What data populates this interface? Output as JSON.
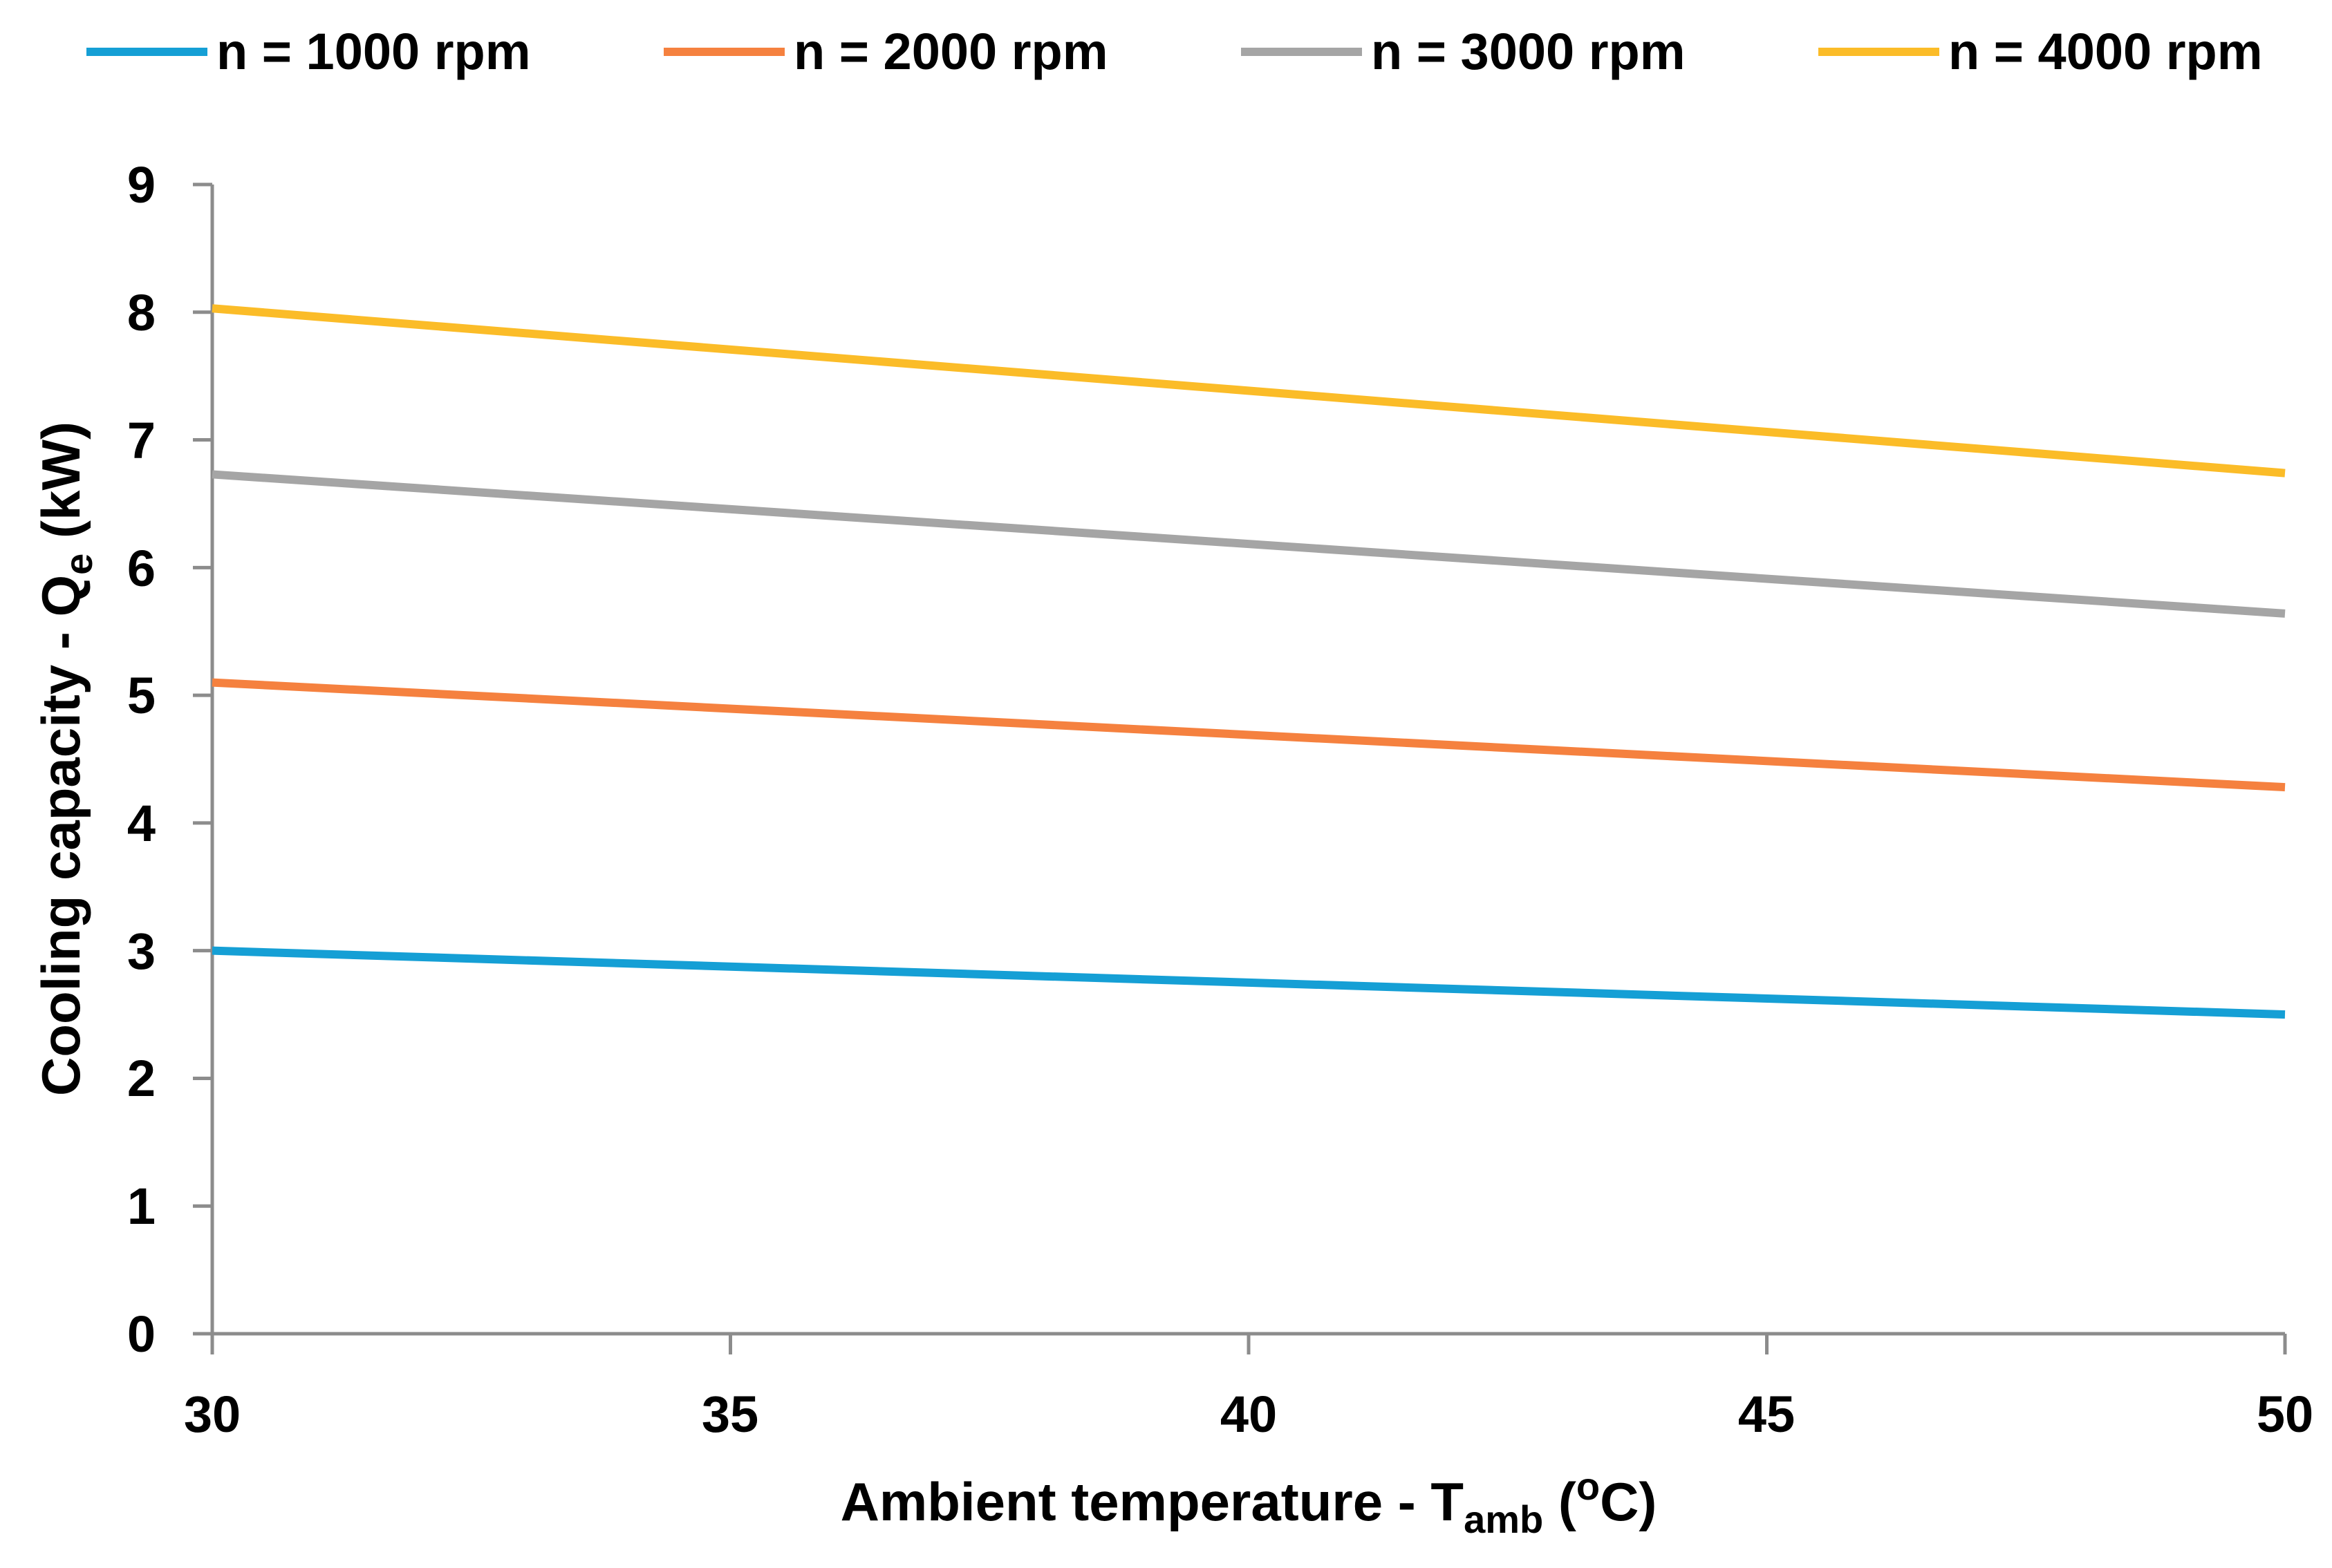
{
  "chart_data": {
    "type": "line",
    "title": "",
    "xlabel": {
      "main": "Ambient temperature - T",
      "sub": "amb",
      "open": " (",
      "sup": "o",
      "unit": "C)"
    },
    "ylabel": {
      "main": "Cooling capacity - Q",
      "sub": "e",
      "unit": " (kW)"
    },
    "xlim": [
      30,
      50
    ],
    "ylim": [
      0,
      9
    ],
    "x_ticks": [
      "30",
      "35",
      "40",
      "45",
      "50"
    ],
    "y_ticks": [
      "0",
      "1",
      "2",
      "3",
      "4",
      "5",
      "6",
      "7",
      "8",
      "9"
    ],
    "grid": false,
    "legend_position": "top",
    "x": [
      30,
      50
    ],
    "series": [
      {
        "name": "n = 1000 rpm",
        "color": "#159fd5",
        "values": [
          3.0,
          2.5
        ]
      },
      {
        "name": "n = 2000 rpm",
        "color": "#f5813f",
        "values": [
          5.1,
          4.28
        ]
      },
      {
        "name": "n = 3000 rpm",
        "color": "#a5a5a5",
        "values": [
          6.73,
          5.64
        ]
      },
      {
        "name": "n = 4000 rpm",
        "color": "#fbbc28",
        "values": [
          8.03,
          6.74
        ]
      }
    ]
  }
}
